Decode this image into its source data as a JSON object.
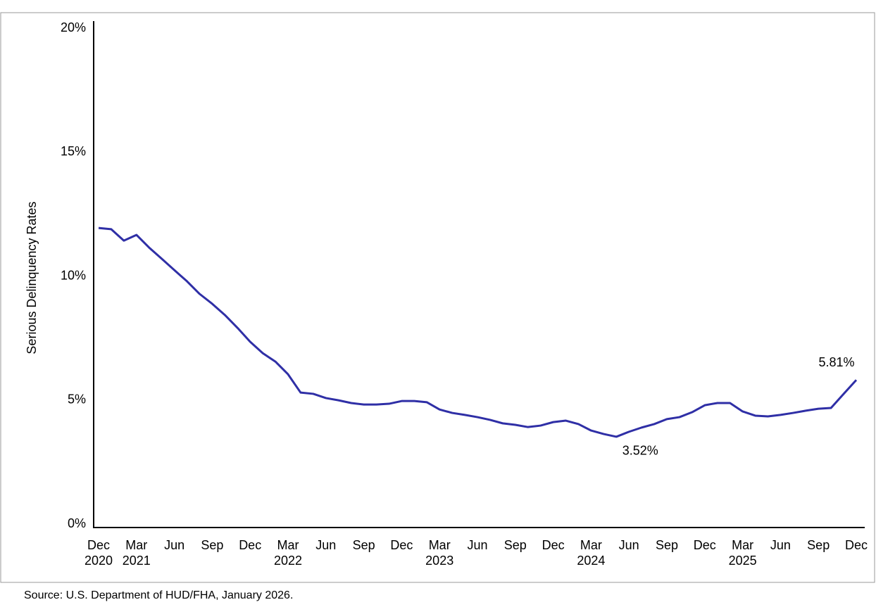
{
  "chart_data": {
    "type": "line",
    "y_label": "Serious Delinquency Rates",
    "source": "Source: U.S. Department of HUD/FHA, January 2026.",
    "categories": [
      "Dec\n2020",
      null,
      null,
      "Mar\n2021",
      null,
      null,
      "Jun",
      null,
      null,
      "Sep",
      null,
      null,
      "Dec",
      null,
      null,
      "Mar\n2022",
      null,
      null,
      "Jun",
      null,
      null,
      "Sep",
      null,
      null,
      "Dec",
      null,
      null,
      "Mar\n2023",
      null,
      null,
      "Jun",
      null,
      null,
      "Sep",
      null,
      null,
      "Dec",
      null,
      null,
      "Mar\n2024",
      null,
      null,
      "Jun",
      null,
      null,
      "Sep",
      null,
      null,
      "Dec",
      null,
      null,
      "Mar\n2025",
      null,
      null,
      "Jun",
      null,
      null,
      "Sep",
      null,
      null,
      "Dec"
    ],
    "values": [
      11.94,
      11.89,
      11.43,
      11.66,
      11.15,
      10.7,
      10.24,
      9.79,
      9.28,
      8.88,
      8.43,
      7.91,
      7.35,
      6.89,
      6.55,
      6.04,
      5.3,
      5.25,
      5.08,
      4.99,
      4.88,
      4.82,
      4.82,
      4.85,
      4.96,
      4.96,
      4.91,
      4.62,
      4.48,
      4.4,
      4.31,
      4.2,
      4.06,
      4.0,
      3.91,
      3.97,
      4.11,
      4.17,
      4.03,
      3.77,
      3.63,
      3.52,
      3.72,
      3.89,
      4.03,
      4.23,
      4.31,
      4.51,
      4.79,
      4.88,
      4.88,
      4.54,
      4.37,
      4.34,
      4.4,
      4.48,
      4.57,
      4.65,
      4.68,
      5.25,
      5.81
    ],
    "value_labels": [
      null,
      null,
      null,
      null,
      null,
      null,
      null,
      null,
      null,
      null,
      null,
      null,
      null,
      null,
      null,
      null,
      null,
      null,
      null,
      null,
      null,
      null,
      null,
      null,
      null,
      null,
      null,
      null,
      null,
      null,
      null,
      null,
      null,
      null,
      null,
      null,
      null,
      null,
      null,
      null,
      null,
      "3.52%",
      null,
      null,
      null,
      null,
      null,
      null,
      null,
      null,
      null,
      null,
      null,
      null,
      null,
      null,
      null,
      null,
      null,
      null,
      "5.81%"
    ],
    "color": "#2f2fa6",
    "ylim": [
      0,
      20
    ],
    "yticks": [
      {
        "value": 0,
        "label": "0%"
      },
      {
        "value": 5,
        "label": "5%"
      },
      {
        "value": 10,
        "label": "10%"
      },
      {
        "value": 15,
        "label": "15%"
      },
      {
        "value": 20,
        "label": "20%"
      }
    ],
    "grid": false
  }
}
